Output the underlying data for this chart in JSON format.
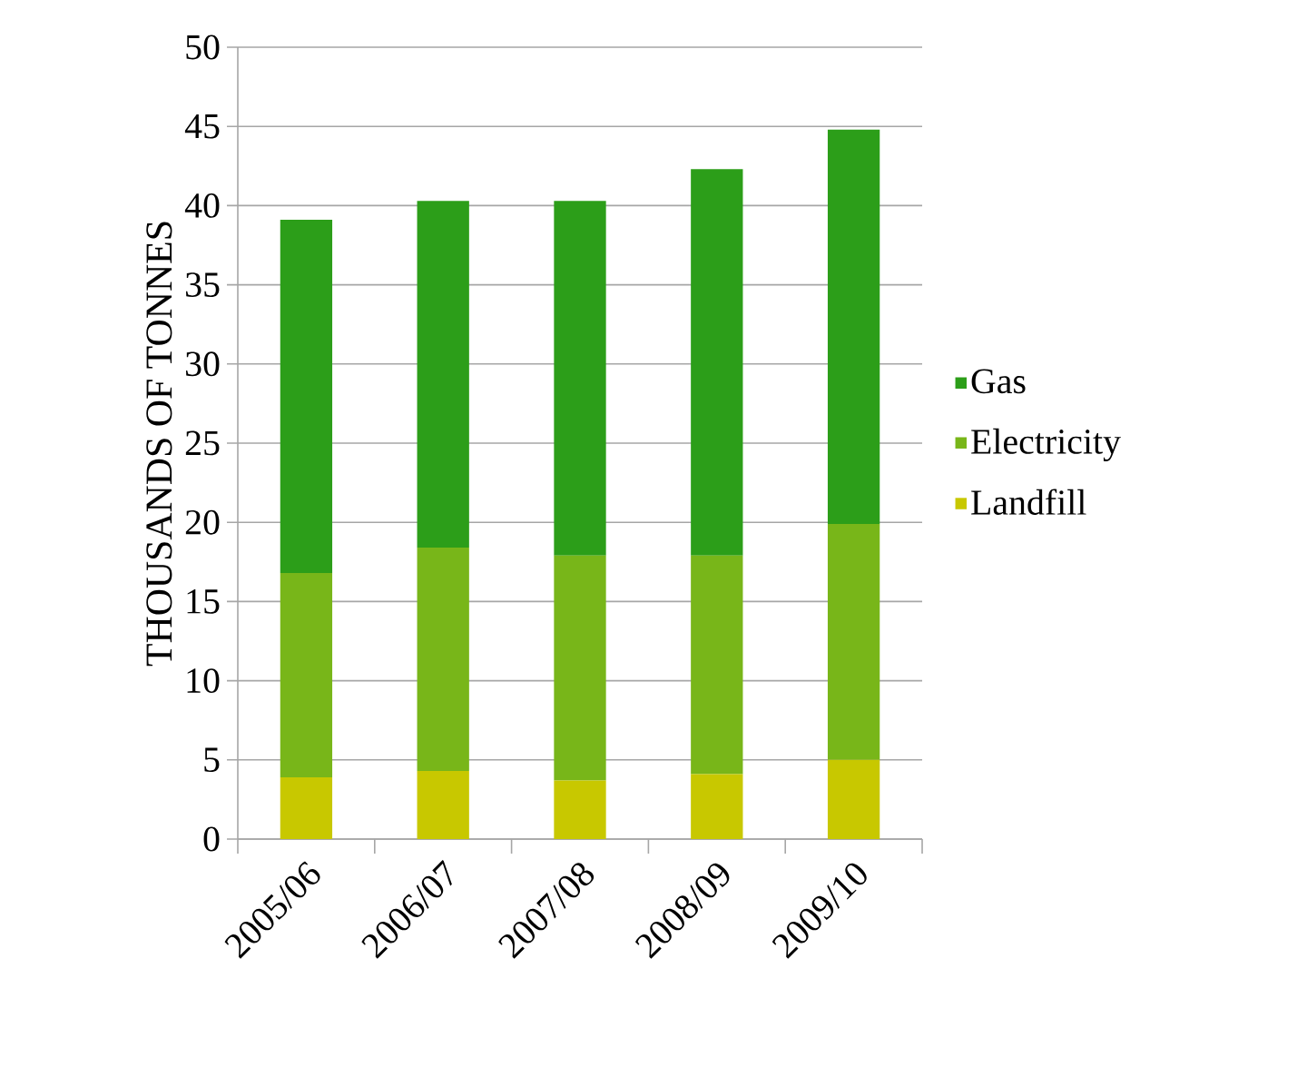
{
  "chart_data": {
    "type": "bar",
    "stacked": true,
    "ylabel": "THOUSANDS OF TONNES",
    "categories": [
      "2005/06",
      "2006/07",
      "2007/08",
      "2008/09",
      "2009/10"
    ],
    "series": [
      {
        "name": "Landfill",
        "color": "#c8c800",
        "values": [
          3.9,
          4.3,
          3.7,
          4.1,
          5.0
        ]
      },
      {
        "name": "Electricity",
        "color": "#78b619",
        "values": [
          12.9,
          14.1,
          14.2,
          13.8,
          14.9
        ]
      },
      {
        "name": "Gas",
        "color": "#2c9e19",
        "values": [
          22.3,
          21.9,
          22.4,
          24.4,
          24.9
        ]
      }
    ],
    "ylim": [
      0,
      50
    ],
    "yticks": [
      0,
      5,
      10,
      15,
      20,
      25,
      30,
      35,
      40,
      45,
      50
    ],
    "grid": "y",
    "legend": "right"
  }
}
